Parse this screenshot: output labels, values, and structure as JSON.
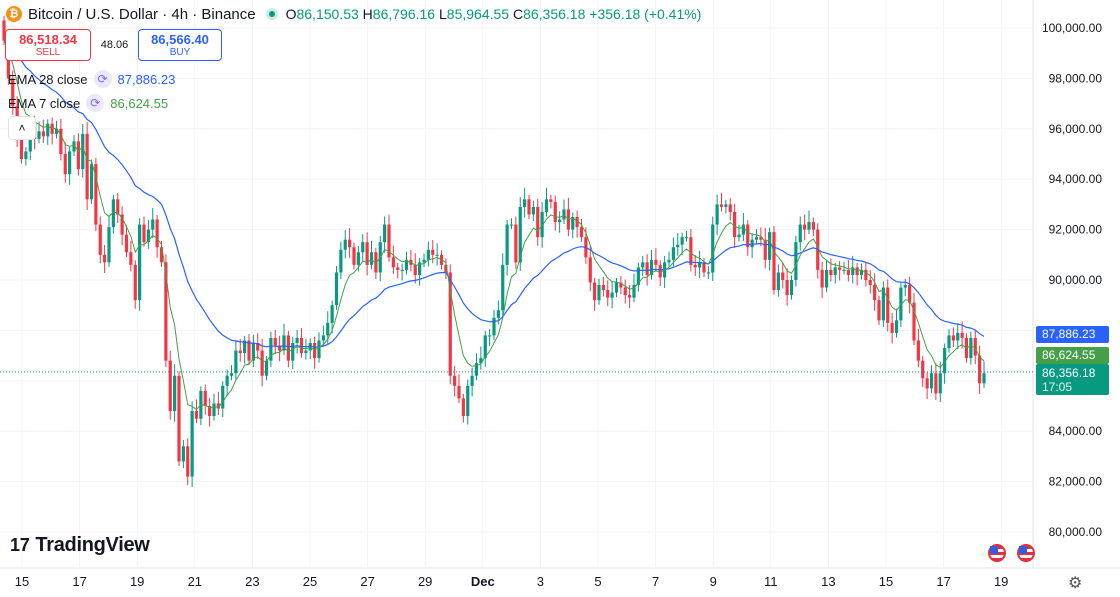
{
  "header": {
    "symbol": "Bitcoin / U.S. Dollar · 4h · Binance",
    "coin_glyph": "₿",
    "open_label": "O",
    "open": "86,150.53",
    "high_label": "H",
    "high": "86,796.16",
    "low_label": "L",
    "low": "85,964.55",
    "close_label": "C",
    "close": "86,356.18",
    "change": "+356.18 (+0.41%)"
  },
  "trade": {
    "sell_price": "86,518.34",
    "sell_label": "SELL",
    "spread": "48.06",
    "buy_price": "86,566.40",
    "buy_label": "BUY"
  },
  "indicators": {
    "ema28_name": "EMA 28 close",
    "ema28_value": "87,886.23",
    "ema7_name": "EMA 7 close",
    "ema7_value": "86,624.55",
    "icon": "refresh-icon"
  },
  "collapse_glyph": "˄",
  "brand": {
    "logo": "17",
    "name": "TradingView"
  },
  "price_labels": {
    "ema28": "87,886.23",
    "ema7": "86,624.55",
    "last": "86,356.18",
    "countdown": "17:05"
  },
  "colors": {
    "up": "#089981",
    "down": "#f23645",
    "ema28": "#2962ff",
    "ema7": "#43a047",
    "grid": "#f0f3fa",
    "last_line": "#089981"
  },
  "chart_data": {
    "type": "candlestick",
    "title": "Bitcoin / U.S. Dollar · 4h · Binance",
    "y_ticks": [
      "100,000.00",
      "98,000.00",
      "96,000.00",
      "94,000.00",
      "92,000.00",
      "90,000.00",
      "84,000.00",
      "82,000.00",
      "80,000.00"
    ],
    "y_tick_values": [
      100000,
      98000,
      96000,
      94000,
      92000,
      90000,
      84000,
      82000,
      80000
    ],
    "x_ticks": [
      "15",
      "17",
      "19",
      "21",
      "23",
      "25",
      "27",
      "29",
      "Dec",
      "3",
      "5",
      "7",
      "9",
      "11",
      "13",
      "15",
      "17",
      "19"
    ],
    "ylim": [
      79000,
      100800
    ],
    "last_price": 86356.18,
    "series": [
      {
        "name": "EMA 28 close",
        "last": 87886.23
      },
      {
        "name": "EMA 7 close",
        "last": 86624.55
      }
    ],
    "closes": [
      99500,
      98000,
      96900,
      95700,
      94800,
      95100,
      96200,
      95600,
      95900,
      95700,
      96200,
      95800,
      96000,
      95000,
      94200,
      95100,
      95500,
      94400,
      95800,
      93200,
      94600,
      92200,
      91000,
      90700,
      92100,
      93200,
      92600,
      91800,
      91100,
      90600,
      89200,
      92200,
      91500,
      92000,
      92400,
      91300,
      90700,
      86800,
      84800,
      86200,
      82800,
      83400,
      82200,
      84800,
      84500,
      85600,
      85000,
      84600,
      85100,
      84900,
      85800,
      86200,
      86300,
      87200,
      87100,
      87600,
      86800,
      87500,
      87200,
      86200,
      86800,
      87700,
      87400,
      87200,
      87800,
      86800,
      87500,
      87700,
      87100,
      87200,
      87500,
      86900,
      87600,
      87800,
      88300,
      89000,
      90300,
      91200,
      91600,
      91300,
      90600,
      91100,
      91500,
      90600,
      91100,
      90300,
      91500,
      92200,
      90900,
      90500,
      90400,
      90400,
      90800,
      90600,
      90200,
      90700,
      90800,
      91200,
      91000,
      91000,
      90600,
      90300,
      86200,
      85800,
      85300,
      84600,
      85800,
      86200,
      86700,
      86900,
      87800,
      87800,
      88500,
      88800,
      90600,
      92200,
      92200,
      90700,
      92900,
      93200,
      92600,
      92900,
      91700,
      92700,
      93200,
      93100,
      92300,
      92400,
      92800,
      92000,
      92500,
      92100,
      91700,
      90900,
      89900,
      89200,
      89800,
      89600,
      89300,
      89500,
      89900,
      89700,
      89400,
      89300,
      89800,
      90500,
      90700,
      90200,
      90800,
      90600,
      90100,
      90700,
      90800,
      91300,
      91400,
      91700,
      91700,
      90600,
      90500,
      90700,
      90300,
      90300,
      92200,
      93000,
      92900,
      93000,
      92700,
      91700,
      91800,
      92200,
      91300,
      91600,
      91700,
      91600,
      90800,
      91900,
      89600,
      90300,
      90000,
      89400,
      90000,
      91500,
      92200,
      92000,
      92300,
      92000,
      90400,
      89700,
      90400,
      90200,
      90500,
      90400,
      90400,
      90200,
      90500,
      90200,
      90400,
      90000,
      89800,
      89200,
      88400,
      89700,
      88300,
      87900,
      88400,
      89700,
      89800,
      89100,
      87600,
      86800,
      86100,
      85700,
      86300,
      85500,
      86300,
      87300,
      87800,
      87600,
      87900,
      87700,
      86900,
      87700,
      87000,
      85900,
      86300
    ]
  }
}
